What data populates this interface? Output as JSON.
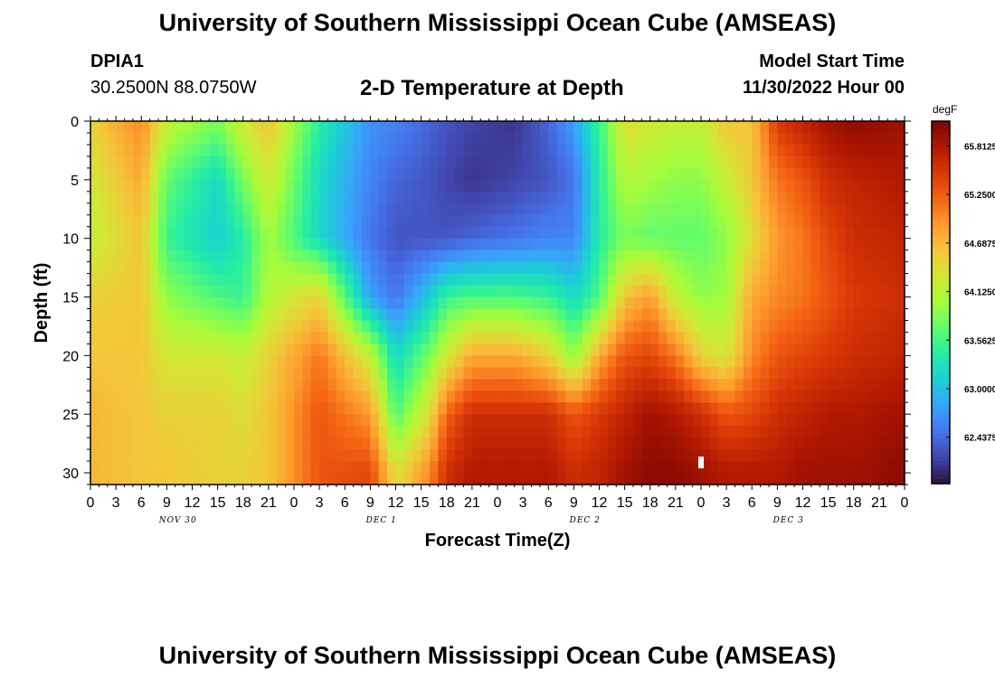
{
  "header": {
    "title": "University of Southern Mississippi Ocean Cube (AMSEAS)",
    "station": "DPIA1",
    "coords": "30.2500N  88.0750W",
    "chart_title": "2-D Temperature at Depth",
    "model_start_label": "Model Start Time",
    "model_start_value": "11/30/2022 Hour 00"
  },
  "footer": {
    "title": "University of Southern Mississippi Ocean Cube (AMSEAS)"
  },
  "chart_data": {
    "type": "heatmap",
    "title": "2-D Temperature at Depth",
    "xlabel": "Forecast Time(Z)",
    "ylabel": "Depth (ft)",
    "x_ticks": [
      "0",
      "3",
      "6",
      "9",
      "12",
      "15",
      "18",
      "21",
      "0",
      "3",
      "6",
      "9",
      "12",
      "15",
      "18",
      "21",
      "0",
      "3",
      "6",
      "9",
      "12",
      "15",
      "18",
      "21",
      "0",
      "3",
      "6",
      "9",
      "12",
      "15",
      "18",
      "21",
      "0"
    ],
    "x_hours_range": [
      0,
      96
    ],
    "day_labels": [
      {
        "label": "NOV 30",
        "hour": 10
      },
      {
        "label": "DEC 1",
        "hour": 34
      },
      {
        "label": "DEC 2",
        "hour": 58
      },
      {
        "label": "DEC 3",
        "hour": 82
      }
    ],
    "y_ticks": [
      0,
      5,
      10,
      15,
      20,
      25,
      30
    ],
    "ylim": [
      31,
      0
    ],
    "colorbar": {
      "unit": "degF",
      "labels": [
        "65.8125",
        "65.2500",
        "64.6875",
        "64.1250",
        "63.5625",
        "63.0000",
        "62.4375"
      ],
      "range_degF": [
        61.9,
        66.1
      ],
      "colors": [
        "#30123b",
        "#4145ab",
        "#4675ed",
        "#39a2fc",
        "#1bcfd4",
        "#24eca6",
        "#61fc6c",
        "#a4fc3b",
        "#d1e834",
        "#f3c63a",
        "#fe9b2d",
        "#f36315",
        "#d93806",
        "#b11901",
        "#7a0403"
      ]
    },
    "hours": [
      0,
      6,
      9,
      15,
      18,
      21,
      27,
      33,
      36,
      40,
      42,
      45,
      50,
      54,
      57,
      60,
      63,
      66,
      69,
      72,
      75,
      78,
      81,
      84,
      87,
      90,
      96
    ],
    "depths_ft": [
      0,
      5,
      10,
      15,
      20,
      25,
      30
    ],
    "temperature_degF": [
      [
        64.5,
        65.0,
        64.2,
        63.8,
        64.3,
        64.6,
        63.4,
        62.7,
        62.6,
        62.4,
        62.3,
        62.2,
        62.1,
        62.4,
        62.8,
        63.5,
        64.4,
        64.3,
        64.2,
        64.2,
        64.6,
        64.6,
        65.5,
        65.7,
        65.9,
        66.0,
        65.9
      ],
      [
        64.3,
        64.8,
        63.7,
        63.2,
        63.8,
        64.3,
        63.2,
        62.6,
        62.4,
        62.3,
        62.2,
        62.1,
        62.2,
        62.3,
        62.5,
        63.4,
        64.1,
        64.0,
        63.9,
        63.9,
        64.2,
        64.6,
        65.1,
        65.3,
        65.6,
        65.7,
        65.8
      ],
      [
        64.2,
        64.6,
        63.5,
        63.1,
        63.4,
        64.0,
        63.2,
        62.5,
        62.3,
        62.3,
        62.3,
        62.4,
        62.5,
        62.6,
        62.6,
        63.4,
        63.8,
        63.7,
        63.7,
        63.7,
        63.9,
        64.4,
        64.9,
        65.1,
        65.4,
        65.6,
        65.7
      ],
      [
        64.5,
        64.6,
        63.9,
        63.6,
        63.5,
        64.1,
        64.5,
        62.8,
        62.5,
        63.1,
        63.5,
        63.6,
        63.6,
        63.5,
        63.2,
        63.6,
        64.6,
        64.9,
        64.2,
        63.9,
        64.0,
        64.8,
        65.0,
        65.1,
        65.3,
        65.5,
        65.6
      ],
      [
        64.6,
        64.6,
        64.3,
        64.3,
        64.2,
        64.5,
        65.1,
        64.2,
        63.2,
        63.8,
        64.3,
        64.8,
        64.8,
        64.5,
        63.9,
        64.8,
        65.3,
        65.4,
        65.1,
        64.5,
        64.3,
        65.0,
        65.3,
        65.4,
        65.5,
        65.6,
        65.7
      ],
      [
        64.7,
        64.6,
        64.5,
        64.5,
        64.4,
        64.6,
        65.3,
        64.9,
        63.6,
        64.4,
        65.2,
        65.6,
        65.6,
        65.6,
        65.3,
        65.5,
        65.7,
        65.9,
        65.8,
        65.6,
        65.3,
        65.4,
        65.6,
        65.7,
        65.8,
        65.8,
        65.9
      ],
      [
        64.7,
        64.6,
        64.6,
        64.5,
        64.5,
        64.6,
        65.3,
        65.4,
        64.4,
        65.0,
        65.6,
        65.8,
        65.8,
        65.8,
        65.6,
        65.7,
        65.9,
        66.0,
        66.0,
        65.9,
        65.8,
        65.8,
        65.8,
        65.9,
        65.9,
        65.9,
        66.0
      ]
    ],
    "marker": {
      "hour": 72,
      "depth_ft": 29
    }
  }
}
